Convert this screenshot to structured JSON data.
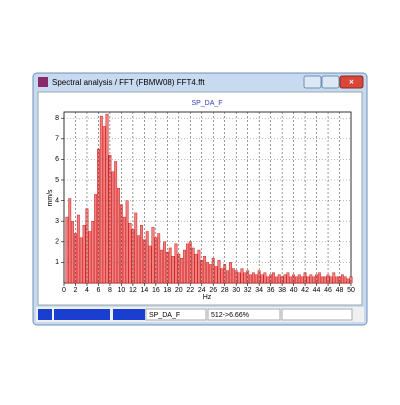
{
  "window": {
    "title": "Spectral analysis / FFT (FBMW08)   FFT4.fft"
  },
  "status": {
    "channel": "SP_DA_F",
    "info": "512->6.66%"
  },
  "chart_data": {
    "type": "bar",
    "title": "SP_DA_F",
    "y_label": "mm/s",
    "x_label": "Hz",
    "color": "#f08080",
    "edge_color": "#cc0000",
    "grid": true,
    "xlim": [
      0,
      50
    ],
    "xticks": [
      0,
      2,
      4,
      6,
      8,
      10,
      12,
      14,
      16,
      18,
      20,
      22,
      24,
      26,
      28,
      30,
      32,
      34,
      36,
      38,
      40,
      42,
      44,
      46,
      48,
      50
    ],
    "ylim": [
      0,
      8.3
    ],
    "yticks": [
      1,
      2,
      3,
      4,
      5,
      6,
      7,
      8
    ],
    "x": [
      0.5,
      1,
      1.5,
      2,
      2.5,
      3,
      3.5,
      4,
      4.5,
      5,
      5.5,
      6,
      6.5,
      7,
      7.5,
      8,
      8.5,
      9,
      9.5,
      10,
      10.5,
      11,
      11.5,
      12,
      12.5,
      13,
      13.5,
      14,
      14.5,
      15,
      15.5,
      16,
      16.5,
      17,
      17.5,
      18,
      18.5,
      19,
      19.5,
      20,
      20.5,
      21,
      21.5,
      22,
      22.5,
      23,
      23.5,
      24,
      24.5,
      25,
      25.5,
      26,
      26.5,
      27,
      27.5,
      28,
      28.5,
      29,
      29.5,
      30,
      30.5,
      31,
      31.5,
      32,
      32.5,
      33,
      33.5,
      34,
      34.5,
      35,
      35.5,
      36,
      36.5,
      37,
      37.5,
      38,
      38.5,
      39,
      39.5,
      40,
      40.5,
      41,
      41.5,
      42,
      42.5,
      43,
      43.5,
      44,
      44.5,
      45,
      45.5,
      46,
      46.5,
      47,
      47.5,
      48,
      48.5,
      49,
      49.5,
      50
    ],
    "values": [
      3.2,
      4.1,
      3.0,
      2.4,
      3.3,
      2.2,
      2.8,
      3.6,
      2.5,
      3.0,
      4.3,
      6.5,
      8.1,
      7.6,
      8.2,
      6.2,
      5.4,
      5.9,
      4.6,
      3.8,
      3.2,
      4.0,
      2.9,
      2.6,
      3.4,
      2.3,
      2.8,
      2.1,
      2.5,
      1.8,
      2.7,
      2.2,
      2.4,
      1.6,
      2.0,
      1.5,
      1.7,
      1.3,
      1.9,
      1.4,
      1.2,
      1.6,
      1.9,
      2.0,
      1.7,
      1.4,
      1.6,
      1.1,
      1.3,
      1.0,
      0.9,
      1.2,
      0.8,
      1.1,
      0.7,
      0.9,
      0.6,
      1.0,
      0.7,
      0.6,
      0.5,
      0.7,
      0.5,
      0.6,
      0.4,
      0.5,
      0.4,
      0.6,
      0.4,
      0.5,
      0.3,
      0.4,
      0.5,
      0.3,
      0.4,
      0.3,
      0.4,
      0.5,
      0.3,
      0.4,
      0.3,
      0.4,
      0.3,
      0.5,
      0.3,
      0.4,
      0.3,
      0.4,
      0.5,
      0.3,
      0.3,
      0.4,
      0.3,
      0.5,
      0.3,
      0.3,
      0.4,
      0.3,
      0.2,
      0.3
    ]
  }
}
